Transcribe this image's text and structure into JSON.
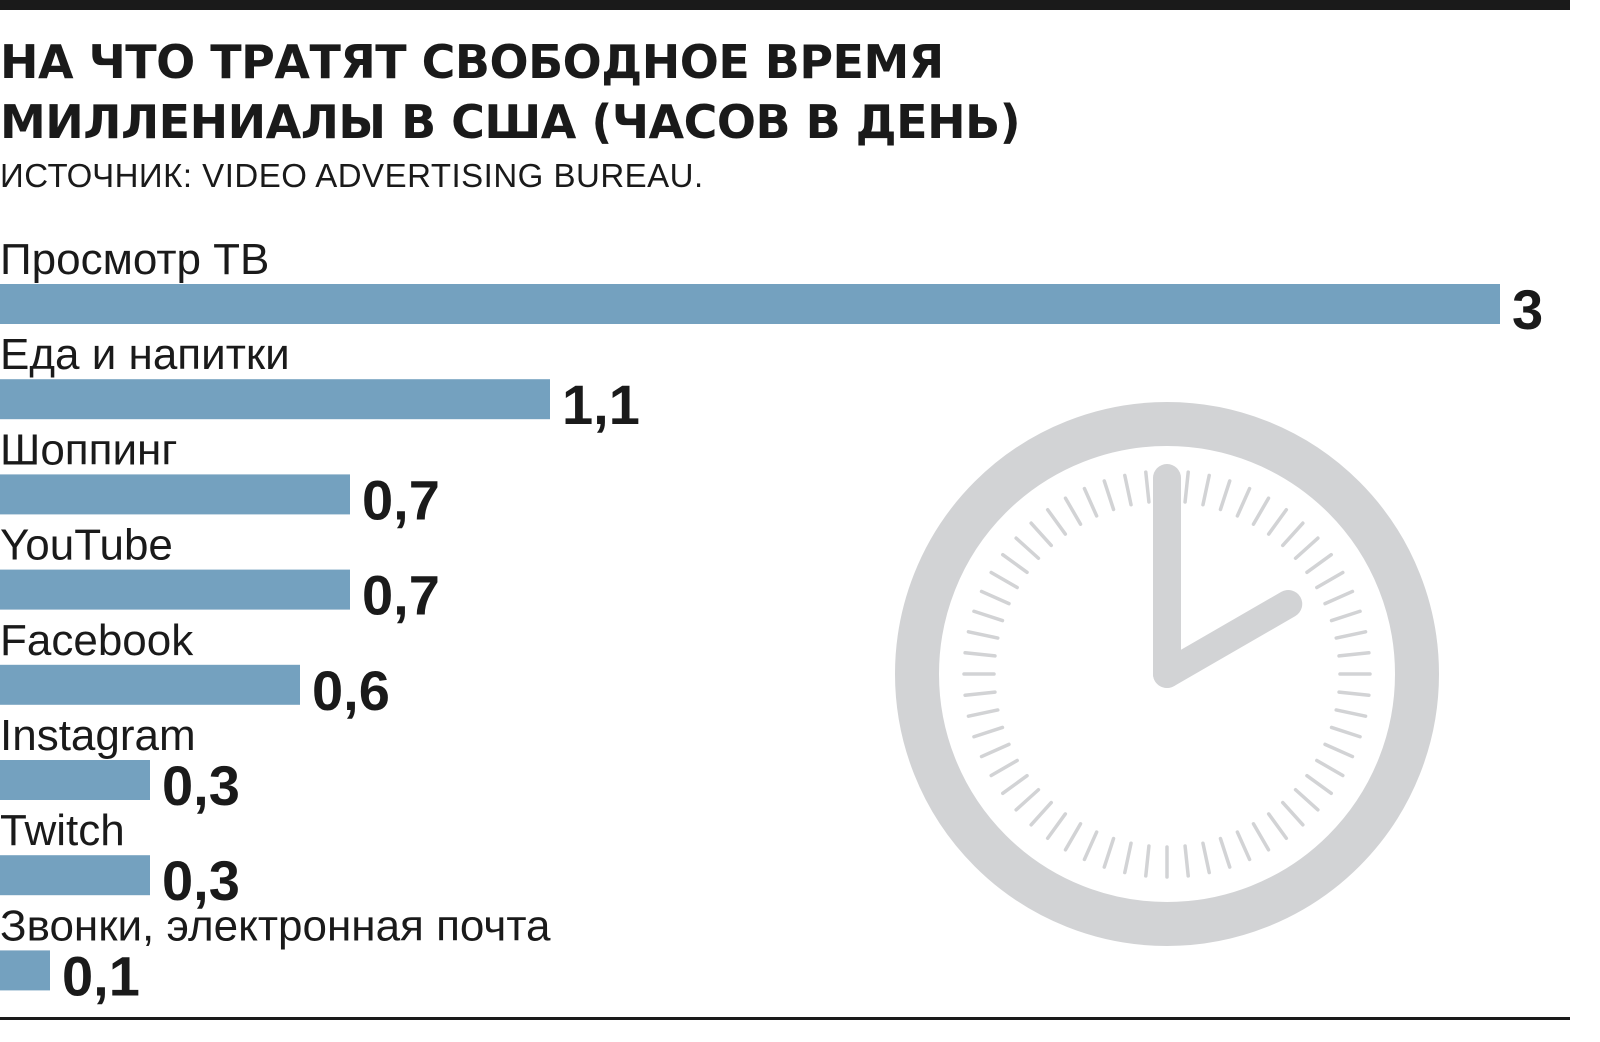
{
  "header": {
    "title": "НА ЧТО ТРАТЯТ СВОБОДНОЕ ВРЕМЯ МИЛЛЕНИАЛЫ В США (ЧАСОВ В ДЕНЬ)",
    "source": "ИСТОЧНИК: VIDEO ADVERTISING BUREAU."
  },
  "colors": {
    "bar": "#74a1bf",
    "clock": "#d2d3d5",
    "text": "#1a1a1a"
  },
  "illustration": {
    "icon": "clock-icon",
    "time_shown": "2:00"
  },
  "chart_data": {
    "type": "bar",
    "orientation": "horizontal",
    "title": "НА ЧТО ТРАТЯТ СВОБОДНОЕ ВРЕМЯ МИЛЛЕНИАЛЫ В США (ЧАСОВ В ДЕНЬ)",
    "subtitle": "ИСТОЧНИК: VIDEO ADVERTISING BUREAU.",
    "categories": [
      "Просмотр ТВ",
      "Еда и напитки",
      "Шоппинг",
      "YouTube",
      "Facebook",
      "Instagram",
      "Twitch",
      "Звонки, электронная почта"
    ],
    "values": [
      3,
      1.1,
      0.7,
      0.7,
      0.6,
      0.3,
      0.3,
      0.1
    ],
    "value_labels": [
      "3",
      "1,1",
      "0,7",
      "0,7",
      "0,6",
      "0,3",
      "0,3",
      "0,1"
    ],
    "xlim": [
      0,
      3
    ],
    "grid": false,
    "legend": "none"
  }
}
